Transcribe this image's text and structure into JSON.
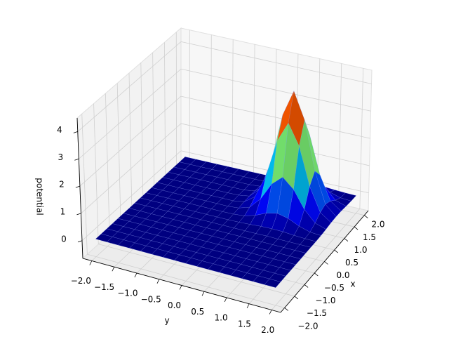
{
  "chart_data": {
    "type": "surface3d",
    "colormap": "jet",
    "xlabel": "x",
    "ylabel": "y",
    "zlabel": "potential",
    "x": [
      -2,
      -1.75,
      -1.5,
      -1.25,
      -1,
      -0.75,
      -0.5,
      -0.25,
      0,
      0.25,
      0.5,
      0.75,
      1,
      1.25,
      1.5,
      1.75,
      2
    ],
    "y": [
      -2,
      -1.75,
      -1.5,
      -1.25,
      -1,
      -0.75,
      -0.5,
      -0.25,
      0,
      0.25,
      0.5,
      0.75,
      1,
      1.25,
      1.5,
      1.75,
      2
    ],
    "z": [
      [
        0,
        0,
        0,
        0,
        0,
        0,
        0,
        0,
        0,
        0,
        0,
        0,
        0,
        0,
        0,
        0,
        0
      ],
      [
        0,
        0,
        0,
        0,
        0,
        0,
        0,
        0,
        0,
        0,
        0,
        0,
        0,
        0,
        0,
        0,
        0
      ],
      [
        0,
        0,
        0,
        0,
        0,
        0,
        0,
        0,
        0,
        0,
        0,
        0,
        0,
        0,
        0,
        0,
        0
      ],
      [
        0,
        0,
        0,
        0,
        0,
        0,
        0,
        0,
        0,
        0,
        0,
        0,
        0,
        0,
        0,
        0,
        0
      ],
      [
        0,
        0,
        0,
        0,
        0,
        0,
        0,
        0,
        0,
        0,
        0,
        0,
        0,
        0,
        0,
        0,
        0
      ],
      [
        0,
        0,
        0,
        0,
        0,
        0,
        0,
        0,
        0,
        0,
        0,
        0,
        0,
        0,
        0,
        0,
        0
      ],
      [
        0,
        0,
        0,
        0,
        0,
        0,
        0,
        0,
        0,
        0,
        0,
        0,
        0,
        0,
        0,
        0,
        0
      ],
      [
        0,
        0,
        0,
        0,
        0,
        0,
        0,
        0,
        0,
        0,
        0,
        0,
        0.01,
        0,
        0,
        0,
        0
      ],
      [
        0,
        0,
        0,
        0,
        0,
        0,
        0,
        0,
        0,
        0.01,
        0.03,
        0.06,
        0.07,
        0.06,
        0.03,
        0.01,
        0
      ],
      [
        0,
        0,
        0,
        0,
        0,
        0,
        0,
        0,
        0.01,
        0.04,
        0.16,
        0.34,
        0.43,
        0.34,
        0.16,
        0.04,
        0.01
      ],
      [
        0,
        0,
        0,
        0,
        0,
        0,
        0,
        0,
        0.03,
        0.16,
        0.56,
        1.2,
        1.55,
        1.2,
        0.56,
        0.16,
        0.03
      ],
      [
        0,
        0,
        0,
        0,
        0,
        0,
        0,
        0,
        0.06,
        0.34,
        1.2,
        2.58,
        3.33,
        2.58,
        1.2,
        0.34,
        0.06
      ],
      [
        0,
        0,
        0,
        0,
        0,
        0,
        0,
        0.01,
        0.07,
        0.43,
        1.55,
        3.33,
        4.3,
        3.33,
        1.55,
        0.43,
        0.07
      ],
      [
        0,
        0,
        0,
        0,
        0,
        0,
        0,
        0,
        0.06,
        0.34,
        1.2,
        2.58,
        3.33,
        2.58,
        1.2,
        0.34,
        0.06
      ],
      [
        0,
        0,
        0,
        0,
        0,
        0,
        0,
        0,
        0.03,
        0.16,
        0.56,
        1.2,
        1.55,
        1.2,
        0.56,
        0.16,
        0.03
      ],
      [
        0,
        0,
        0,
        0,
        0,
        0,
        0,
        0,
        0.01,
        0.04,
        0.16,
        0.34,
        0.43,
        0.34,
        0.16,
        0.04,
        0.01
      ],
      [
        0,
        0,
        0,
        0,
        0,
        0,
        0,
        0,
        0,
        0.01,
        0.03,
        0.06,
        0.07,
        0.06,
        0.03,
        0.01,
        0
      ]
    ],
    "xlim": [
      -2.2,
      2.2
    ],
    "ylim": [
      -2.2,
      2.2
    ],
    "zlim": [
      -0.65,
      4.5
    ],
    "xticks": [
      {
        "value": -2,
        "label": "−2.0"
      },
      {
        "value": -1.5,
        "label": "−1.5"
      },
      {
        "value": -1,
        "label": "−1.0"
      },
      {
        "value": -0.5,
        "label": "−0.5"
      },
      {
        "value": 0,
        "label": "0.0"
      },
      {
        "value": 0.5,
        "label": "0.5"
      },
      {
        "value": 1,
        "label": "1.0"
      },
      {
        "value": 1.5,
        "label": "1.5"
      },
      {
        "value": 2,
        "label": "2.0"
      }
    ],
    "yticks": [
      {
        "value": -2,
        "label": "−2.0"
      },
      {
        "value": -1.5,
        "label": "−1.5"
      },
      {
        "value": -1,
        "label": "−1.0"
      },
      {
        "value": -0.5,
        "label": "−0.5"
      },
      {
        "value": 0,
        "label": "0.0"
      },
      {
        "value": 0.5,
        "label": "0.5"
      },
      {
        "value": 1,
        "label": "1.0"
      },
      {
        "value": 1.5,
        "label": "1.5"
      },
      {
        "value": 2,
        "label": "2.0"
      }
    ],
    "zticks": [
      0,
      1,
      2,
      3,
      4
    ],
    "grid": true
  }
}
